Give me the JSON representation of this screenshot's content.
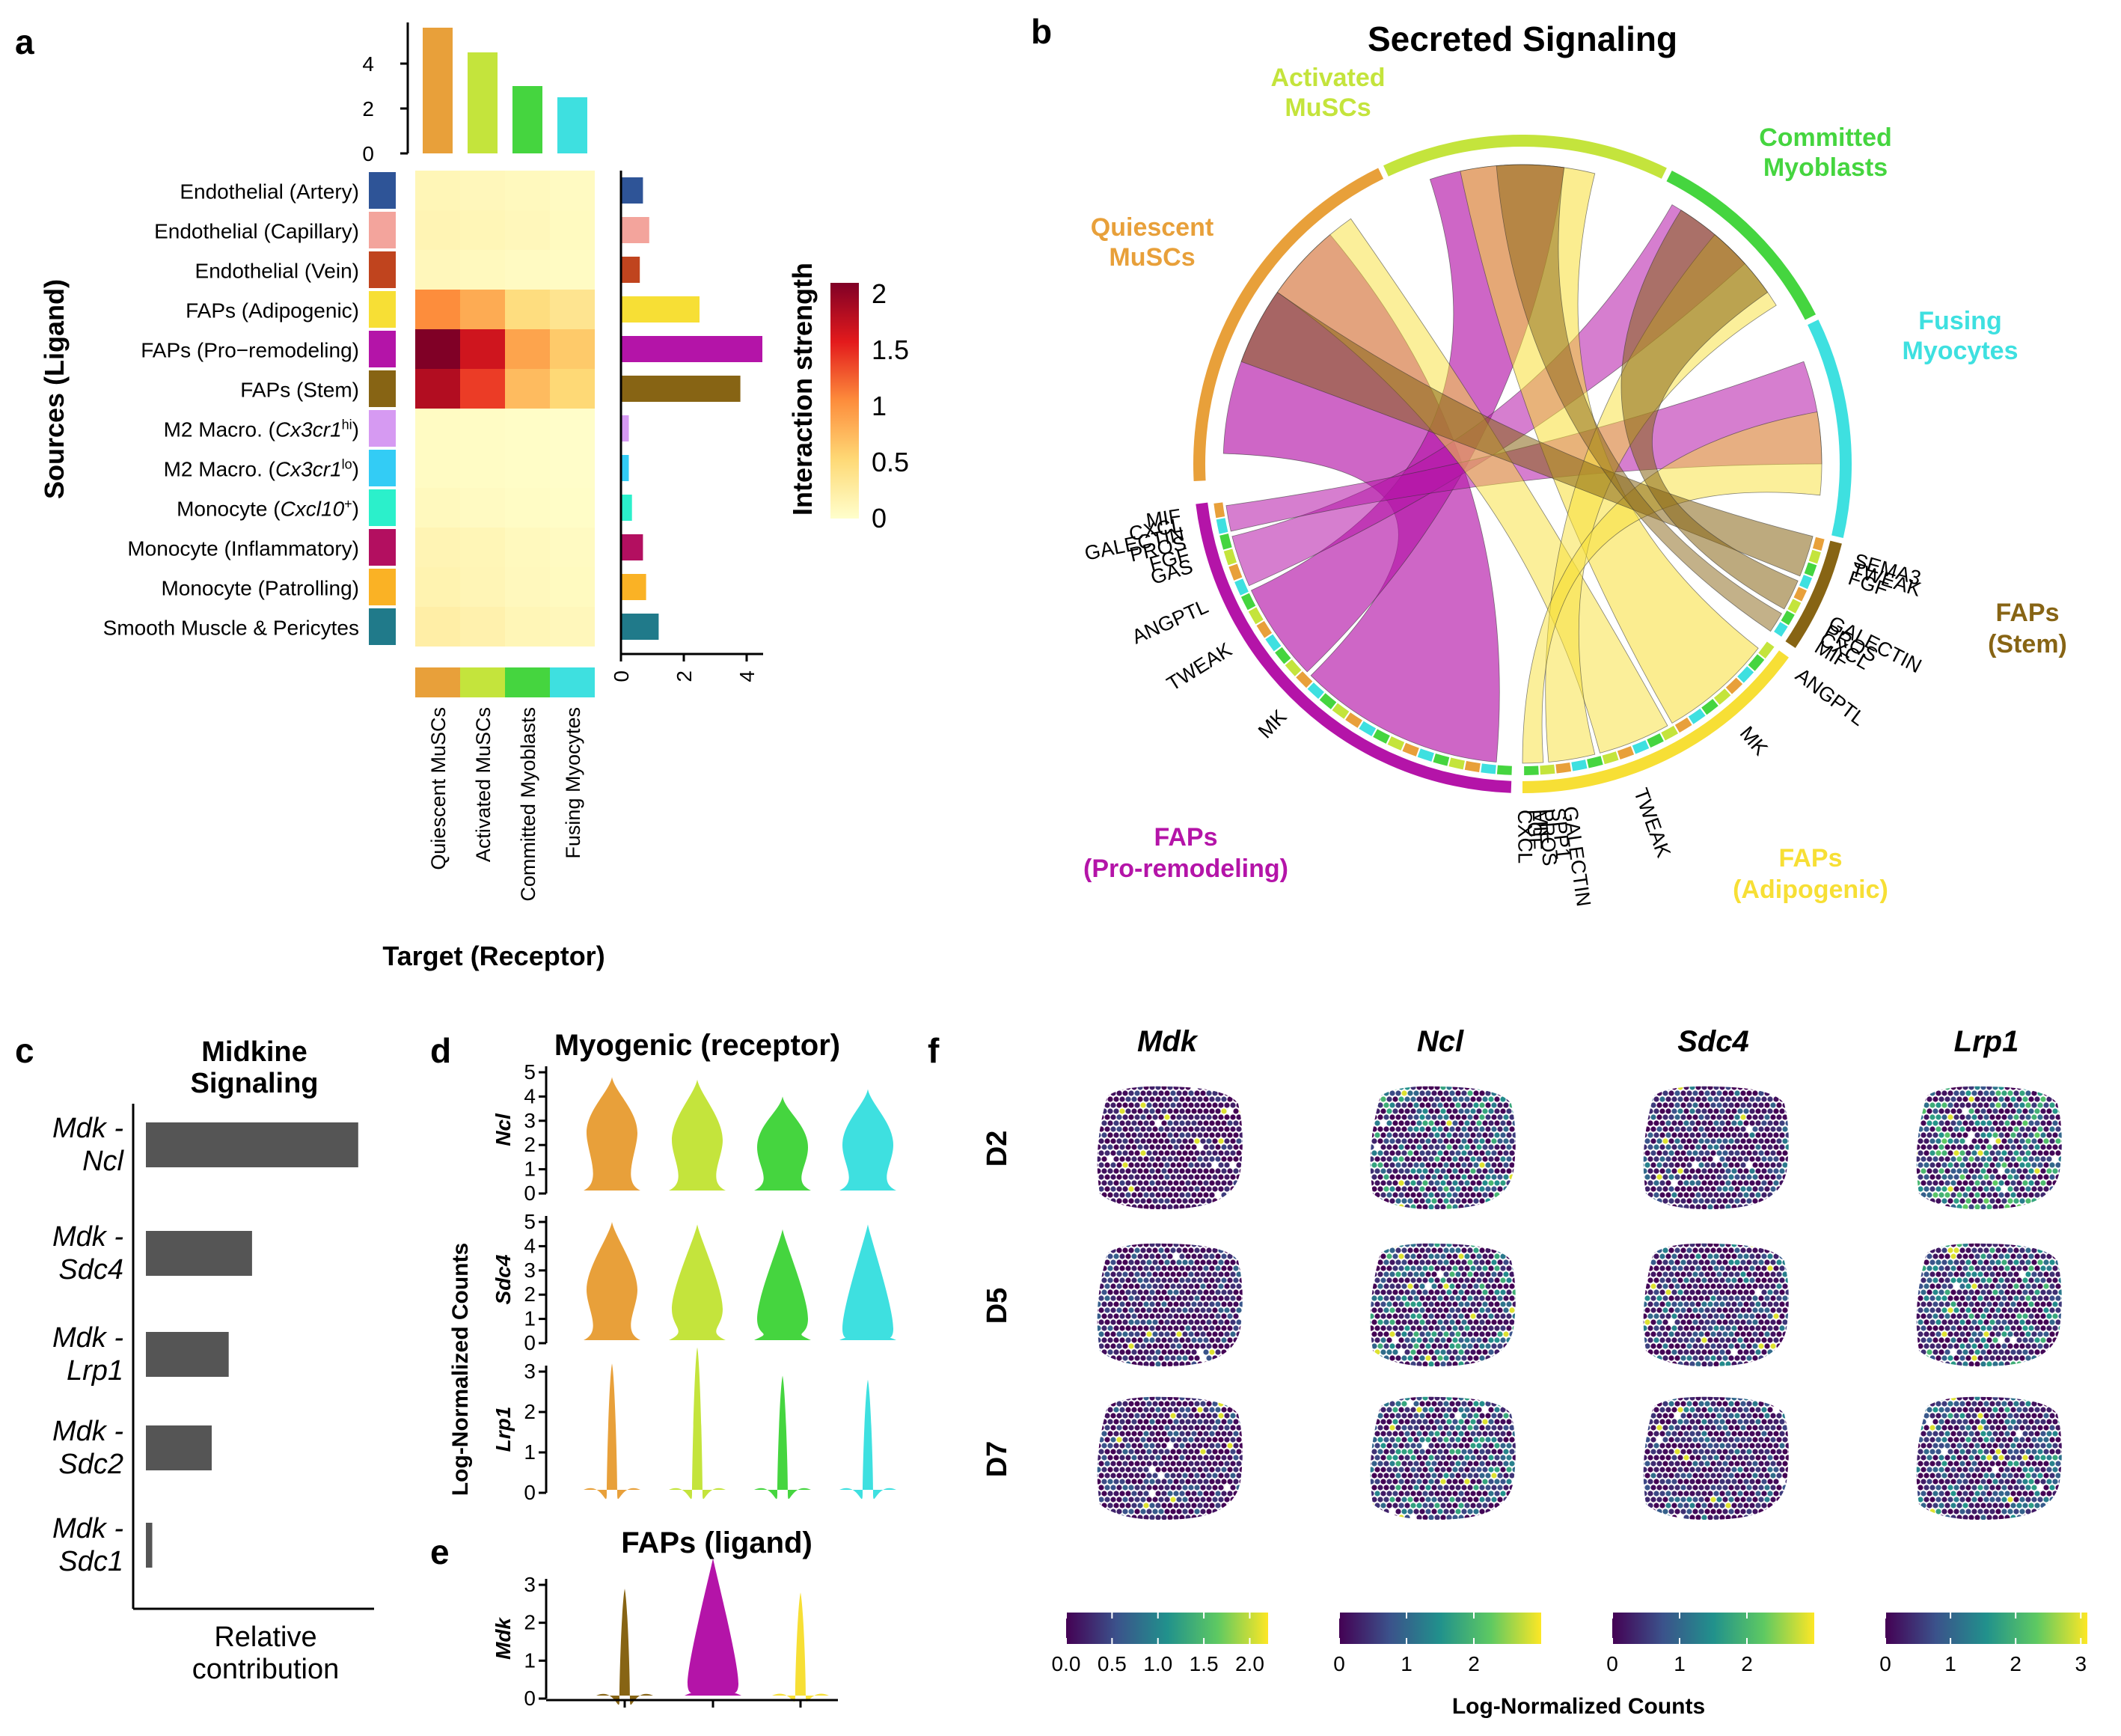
{
  "panels": {
    "a": "a",
    "b": "b",
    "c": "c",
    "d": "d",
    "e": "e",
    "f": "f"
  },
  "colors": {
    "quiescent": "#e8a03a",
    "activated": "#c4e43c",
    "committed": "#45d53f",
    "fusing": "#3ee0e0",
    "stem": "#876414",
    "adipogenic": "#f7df35",
    "proremodeling": "#b414a8",
    "bar": "#555555"
  },
  "chart_data": [
    {
      "id": "a",
      "type": "heatmap",
      "ylabel": "Sources (Ligand)",
      "xlabel": "Target (Receptor)",
      "legend_title": "Interaction strength",
      "legend_ticks": [
        "0",
        "0.5",
        "1",
        "1.5",
        "2"
      ],
      "legend_range": [
        0,
        2
      ],
      "targets": [
        "Quiescent MuSCs",
        "Activated MuSCs",
        "Committed Myoblasts",
        "Fusing Myocytes"
      ],
      "target_colors": [
        "#e8a03a",
        "#c4e43c",
        "#45d53f",
        "#3ee0e0"
      ],
      "sources": [
        {
          "label": "Endothelial (Artery)",
          "color": "#2e5497",
          "values": [
            0.12,
            0.1,
            0.08,
            0.06
          ],
          "total": 0.7
        },
        {
          "label": "Endothelial (Capillary)",
          "color": "#f3a49c",
          "values": [
            0.14,
            0.12,
            0.1,
            0.07
          ],
          "total": 0.9
        },
        {
          "label": "Endothelial (Vein)",
          "color": "#c0441e",
          "values": [
            0.1,
            0.08,
            0.06,
            0.05
          ],
          "total": 0.6
        },
        {
          "label": "FAPs (Adipogenic)",
          "color": "#f7df35",
          "values": [
            1.0,
            0.8,
            0.45,
            0.35
          ],
          "total": 2.5
        },
        {
          "label": "FAPs (Pro−remodeling)",
          "color": "#b414a8",
          "values": [
            2.0,
            1.6,
            0.85,
            0.6
          ],
          "total": 4.5
        },
        {
          "label": "FAPs (Stem)",
          "color": "#876414",
          "values": [
            1.75,
            1.35,
            0.7,
            0.5
          ],
          "total": 3.8
        },
        {
          "label": "M2 Macro. (Cx3cr1",
          "sup": "hi",
          "suffix": ")",
          "color": "#d69af2",
          "values": [
            0.05,
            0.04,
            0.03,
            0.02
          ],
          "total": 0.25
        },
        {
          "label": "M2 Macro. (Cx3cr1",
          "sup": "lo",
          "suffix": ")",
          "color": "#33ccf5",
          "values": [
            0.05,
            0.04,
            0.03,
            0.02
          ],
          "total": 0.25
        },
        {
          "label": "Monocyte (Cxcl10",
          "sup": "+",
          "suffix": ")",
          "color": "#2bf0cb",
          "values": [
            0.08,
            0.06,
            0.04,
            0.03
          ],
          "total": 0.35
        },
        {
          "label": "Monocyte (Inflammatory)",
          "color": "#b30f60",
          "values": [
            0.14,
            0.12,
            0.08,
            0.06
          ],
          "total": 0.7
        },
        {
          "label": "Monocyte (Patrolling)",
          "color": "#fab225",
          "values": [
            0.16,
            0.13,
            0.09,
            0.07
          ],
          "total": 0.8
        },
        {
          "label": "Smooth Muscle & Pericytes",
          "color": "#207a8a",
          "values": [
            0.22,
            0.18,
            0.12,
            0.1
          ],
          "total": 1.2
        }
      ],
      "top_bars": [
        5.6,
        4.5,
        3.0,
        2.5
      ],
      "top_ylim": [
        0,
        6
      ],
      "top_ticks": [
        "0",
        "2",
        "4"
      ],
      "right_xlim": [
        0,
        5
      ],
      "right_ticks": [
        "0",
        "2",
        "4"
      ]
    },
    {
      "id": "b",
      "type": "chord",
      "title": "Secreted Signaling",
      "targets": [
        {
          "label": [
            "Quiescent",
            "MuSCs"
          ],
          "color": "#e8a03a"
        },
        {
          "label": [
            "Activated",
            "MuSCs"
          ],
          "color": "#c4e43c"
        },
        {
          "label": [
            "Committed",
            "Myoblasts"
          ],
          "color": "#45d53f"
        },
        {
          "label": [
            "Fusing",
            "Myocytes"
          ],
          "color": "#3ee0e0"
        }
      ],
      "sources": [
        {
          "label": [
            "FAPs",
            "(Stem)"
          ],
          "color": "#876414",
          "pathways": [
            "SEMA3",
            "TWEAK",
            "FGF",
            "GALECTIN",
            "PROS",
            "CXCL",
            "MIF"
          ]
        },
        {
          "label": [
            "FAPs",
            "(Adipogenic)"
          ],
          "color": "#f7df35",
          "pathways": [
            "ANGPTL",
            "MK",
            "TWEAK",
            "GALECTIN",
            "SPP1",
            "PROS",
            "MIF",
            "FGF",
            "CXCL"
          ]
        },
        {
          "label": [
            "FAPs",
            "(Pro-remodeling)"
          ],
          "color": "#b414a8",
          "pathways": [
            "MK",
            "TWEAK",
            "ANGPTL",
            "GAS",
            "FGF",
            "PROS",
            "GALECTIN",
            "CXCL",
            "MIF"
          ]
        }
      ]
    },
    {
      "id": "c",
      "type": "bar",
      "title": [
        "Midkine",
        "Signaling"
      ],
      "xlabel": [
        "Relative",
        "contribution"
      ],
      "categories": [
        [
          "Mdk -",
          "Ncl"
        ],
        [
          "Mdk -",
          "Sdc4"
        ],
        [
          "Mdk -",
          "Lrp1"
        ],
        [
          "Mdk -",
          "Sdc2"
        ],
        [
          "Mdk -",
          "Sdc1"
        ]
      ],
      "values": [
        1.0,
        0.5,
        0.39,
        0.31,
        0.03
      ],
      "xlim": [
        0,
        1.05
      ]
    },
    {
      "id": "d",
      "type": "violin",
      "title": "Myogenic (receptor)",
      "ylabel": "Log-Normalized Counts",
      "groups": [
        "Quiescent MuSCs",
        "Activated MuSCs",
        "Committed Myoblasts",
        "Fusing Myocytes"
      ],
      "group_colors": [
        "#e8a03a",
        "#c4e43c",
        "#45d53f",
        "#3ee0e0"
      ],
      "genes": [
        {
          "name": "Ncl",
          "ylim": [
            0,
            5
          ],
          "ticks": [
            "0",
            "1",
            "2",
            "3",
            "4",
            "5"
          ],
          "max": [
            4.8,
            4.7,
            4.0,
            4.3
          ],
          "median": [
            2.5,
            2.2,
            1.9,
            2.0
          ]
        },
        {
          "name": "Sdc4",
          "ylim": [
            0,
            5
          ],
          "ticks": [
            "0",
            "1",
            "2",
            "3",
            "4",
            "5"
          ],
          "max": [
            5.0,
            4.9,
            4.7,
            4.9
          ],
          "median": [
            2.2,
            1.4,
            1.0,
            0.6
          ]
        },
        {
          "name": "Lrp1",
          "ylim": [
            0,
            3
          ],
          "ticks": [
            "0",
            "1",
            "2",
            "3"
          ],
          "max": [
            3.2,
            3.6,
            2.9,
            2.8
          ],
          "median": [
            0,
            0,
            0,
            0
          ]
        }
      ]
    },
    {
      "id": "e",
      "type": "violin",
      "title": "FAPs (ligand)",
      "groups": [
        "FAPs (Stem)",
        "FAPs (Pro-remodeling)",
        "FAPs (Adipogenic)"
      ],
      "group_colors": [
        "#876414",
        "#b414a8",
        "#f7df35"
      ],
      "genes": [
        {
          "name": "Mdk",
          "ylim": [
            0,
            3
          ],
          "ticks": [
            "0",
            "1",
            "2",
            "3"
          ],
          "max": [
            2.9,
            3.7,
            2.8
          ],
          "median": [
            0,
            0.4,
            0.1
          ]
        }
      ]
    },
    {
      "id": "f",
      "type": "heatmap",
      "genes": [
        "Mdk",
        "Ncl",
        "Sdc4",
        "Lrp1"
      ],
      "days": [
        "D2",
        "D5",
        "D7"
      ],
      "colorbar_label": "Log-Normalized Counts",
      "colorbars": [
        {
          "ticks": [
            "0.0",
            "0.5",
            "1.0",
            "1.5",
            "2.0"
          ],
          "range": [
            0,
            2.2
          ]
        },
        {
          "ticks": [
            "0",
            "1",
            "2"
          ],
          "range": [
            0,
            3
          ]
        },
        {
          "ticks": [
            "0",
            "1",
            "2"
          ],
          "range": [
            0,
            3
          ]
        },
        {
          "ticks": [
            "0",
            "1",
            "2",
            "3"
          ],
          "range": [
            0,
            3.1
          ]
        }
      ],
      "mean_levels": [
        [
          0.1,
          0.3,
          0.2,
          0.35
        ],
        [
          0.15,
          0.3,
          0.22,
          0.3
        ],
        [
          0.15,
          0.28,
          0.2,
          0.27
        ]
      ]
    }
  ]
}
